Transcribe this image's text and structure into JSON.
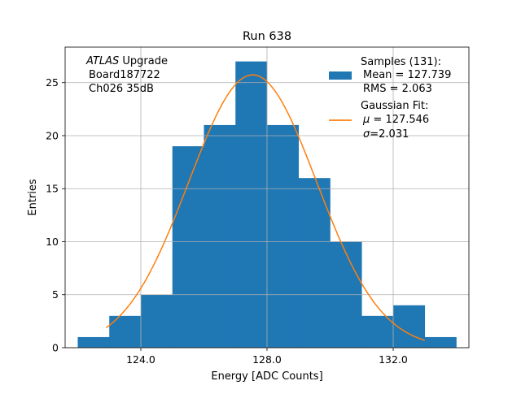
{
  "chart_data": {
    "type": "bar",
    "title": "Run 638",
    "xlabel": "Energy [ADC Counts]",
    "ylabel": "Entries",
    "xlim": [
      121.6,
      134.4
    ],
    "ylim": [
      0,
      28.35
    ],
    "grid": true,
    "xticks": [
      124,
      128,
      132
    ],
    "xtick_labels": [
      "124.0",
      "128.0",
      "132.0"
    ],
    "yticks": [
      0,
      5,
      10,
      15,
      20,
      25
    ],
    "ytick_labels": [
      "0",
      "5",
      "10",
      "15",
      "20",
      "25"
    ],
    "bin_edges": [
      122,
      123,
      124,
      125,
      126,
      127,
      128,
      129,
      130,
      131,
      132,
      133,
      134
    ],
    "values": [
      1,
      3,
      5,
      19,
      21,
      27,
      21,
      16,
      10,
      3,
      4,
      1
    ],
    "fit": {
      "mu": 127.546,
      "sigma": 2.031,
      "entries": 131,
      "bin_width": 1,
      "x_range": [
        122.9,
        133.0
      ]
    },
    "annotation": {
      "italic_part": "ATLAS",
      "rest_line1": " Upgrade",
      "line2": "Board187722",
      "line3": "Ch026 35dB"
    },
    "legend": {
      "position": "upper right",
      "histogram": {
        "line1": "Samples (131):",
        "line2": "Mean = 127.739",
        "line3": "RMS = 2.063"
      },
      "fit": {
        "line1": "Gaussian Fit:",
        "mu_symbol": "μ",
        "mu_text": " = 127.546",
        "sigma_symbol": "σ",
        "sigma_text": "=2.031"
      }
    },
    "colors": {
      "histogram": "#1f77b4",
      "fit": "#ff7f0e",
      "grid": "#b0b0b0",
      "axes": "#000000"
    }
  }
}
